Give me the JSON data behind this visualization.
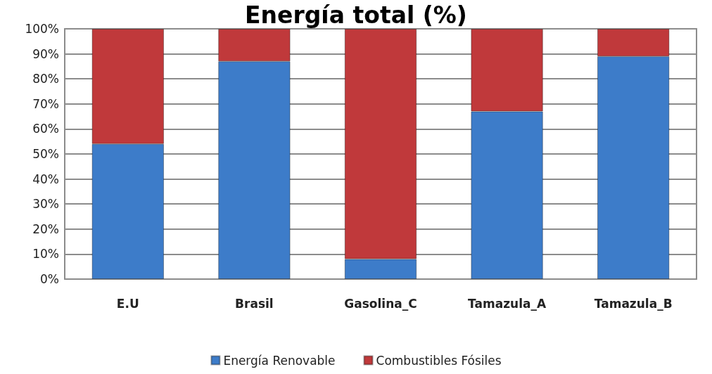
{
  "chart_data": {
    "type": "bar",
    "title": "Energía total (%)",
    "stacked": true,
    "categories": [
      "E.U",
      "Brasil",
      "Gasolina_C",
      "Tamazula_A",
      "Tamazula_B"
    ],
    "series": [
      {
        "name": "Energía Renovable",
        "color": "#3d7cc9",
        "values": [
          54,
          87,
          8,
          67,
          89
        ]
      },
      {
        "name": "Combustibles Fósiles",
        "color": "#c0393b",
        "values": [
          46,
          13,
          92,
          33,
          11
        ]
      }
    ],
    "ylim": [
      0,
      100
    ],
    "yticks": [
      {
        "value": 0,
        "label": "0%"
      },
      {
        "value": 10,
        "label": "10%"
      },
      {
        "value": 20,
        "label": "20%"
      },
      {
        "value": 30,
        "label": "30%"
      },
      {
        "value": 40,
        "label": "40%"
      },
      {
        "value": 50,
        "label": "50%"
      },
      {
        "value": 60,
        "label": "60%"
      },
      {
        "value": 70,
        "label": "70%"
      },
      {
        "value": 80,
        "label": "80%"
      },
      {
        "value": 90,
        "label": "90%"
      },
      {
        "value": 100,
        "label": "100%"
      }
    ],
    "grid": "y",
    "legend": "bottom"
  }
}
